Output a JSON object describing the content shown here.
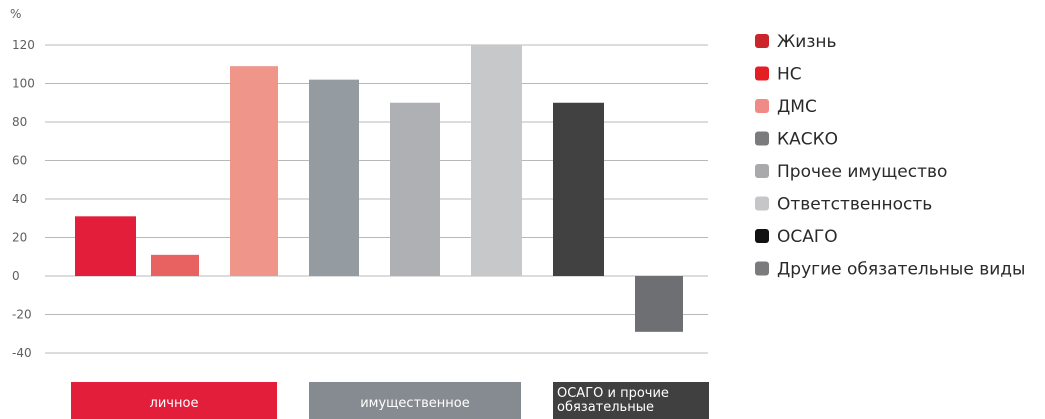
{
  "chart_data": {
    "type": "bar",
    "unit_label": "%",
    "ylim": [
      -40,
      120
    ],
    "yticks": [
      120,
      100,
      80,
      60,
      40,
      20,
      0,
      -20,
      -40
    ],
    "ytick_labels": [
      "120",
      "100",
      "80",
      "60",
      "40",
      "20",
      "0",
      "-20",
      "-40"
    ],
    "grid": true,
    "legend_position": "right",
    "categories": [
      "Жизнь",
      "НС",
      "ДМС",
      "КАСКО",
      "Прочее имущество",
      "Ответственность",
      "ОСАГО",
      "Другие обязательные виды"
    ],
    "values": [
      31,
      11,
      109,
      102,
      90,
      120,
      90,
      -29
    ],
    "bar_colors": [
      "#e31e3b",
      "#e96262",
      "#f0958a",
      "#949ba1",
      "#aeb0b3",
      "#c6c8ca",
      "#414141",
      "#6e6f73"
    ],
    "legend": [
      {
        "label": "Жизнь",
        "color": "#c9252b"
      },
      {
        "label": "НС",
        "color": "#e31e24"
      },
      {
        "label": "ДМС",
        "color": "#f08a84"
      },
      {
        "label": "КАСКО",
        "color": "#7b7b7d"
      },
      {
        "label": "Прочее имущество",
        "color": "#a9a9ab"
      },
      {
        "label": "Ответственность",
        "color": "#c6c6c8"
      },
      {
        "label": "ОСАГО",
        "color": "#111111"
      },
      {
        "label": "Другие обязательные виды",
        "color": "#7b7b7d"
      }
    ],
    "groups": [
      {
        "label": "личное",
        "color": "#e31e3b"
      },
      {
        "label": "имущественное",
        "color": "#858b90"
      },
      {
        "label": "ОСАГО и прочие обязательные",
        "color": "#404040"
      }
    ]
  }
}
